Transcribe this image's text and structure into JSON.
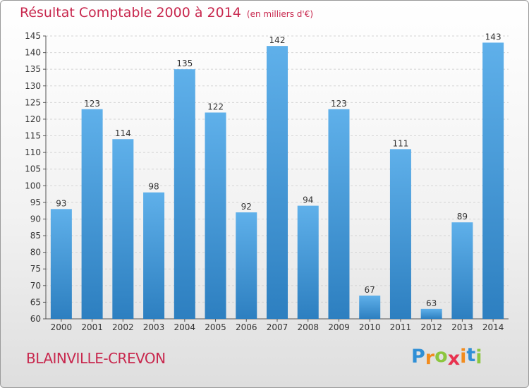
{
  "header": {
    "title": "Résultat Comptable 2000 à 2014",
    "unit": "(en milliers d'€)"
  },
  "footer": {
    "city": "BLAINVILLE-CREVON",
    "logo_letters": [
      "P",
      "r",
      "o",
      "x",
      "i",
      "t",
      "i"
    ],
    "logo_colors": [
      "#2f8fd6",
      "#f28c1e",
      "#8cc63f",
      "#e8324f",
      "#f28c1e",
      "#2f8fd6",
      "#8cc63f"
    ]
  },
  "colors": {
    "title": "#c8284e",
    "bar_light": "#5fb0ea",
    "bar_dark": "#2d7fc0"
  },
  "chart_data": {
    "type": "bar",
    "title": "Résultat Comptable 2000 à 2014",
    "subtitle": "(en milliers d'€)",
    "xlabel": "",
    "ylabel": "",
    "categories": [
      "2000",
      "2001",
      "2002",
      "2003",
      "2004",
      "2005",
      "2006",
      "2007",
      "2008",
      "2009",
      "2010",
      "2011",
      "2012",
      "2013",
      "2014"
    ],
    "values": [
      93,
      123,
      114,
      98,
      135,
      122,
      92,
      142,
      94,
      123,
      67,
      111,
      63,
      89,
      143
    ],
    "ylim": [
      60,
      145
    ],
    "yticks": [
      60,
      65,
      70,
      75,
      80,
      85,
      90,
      95,
      100,
      105,
      110,
      115,
      120,
      125,
      130,
      135,
      140,
      145
    ],
    "grid": true
  }
}
